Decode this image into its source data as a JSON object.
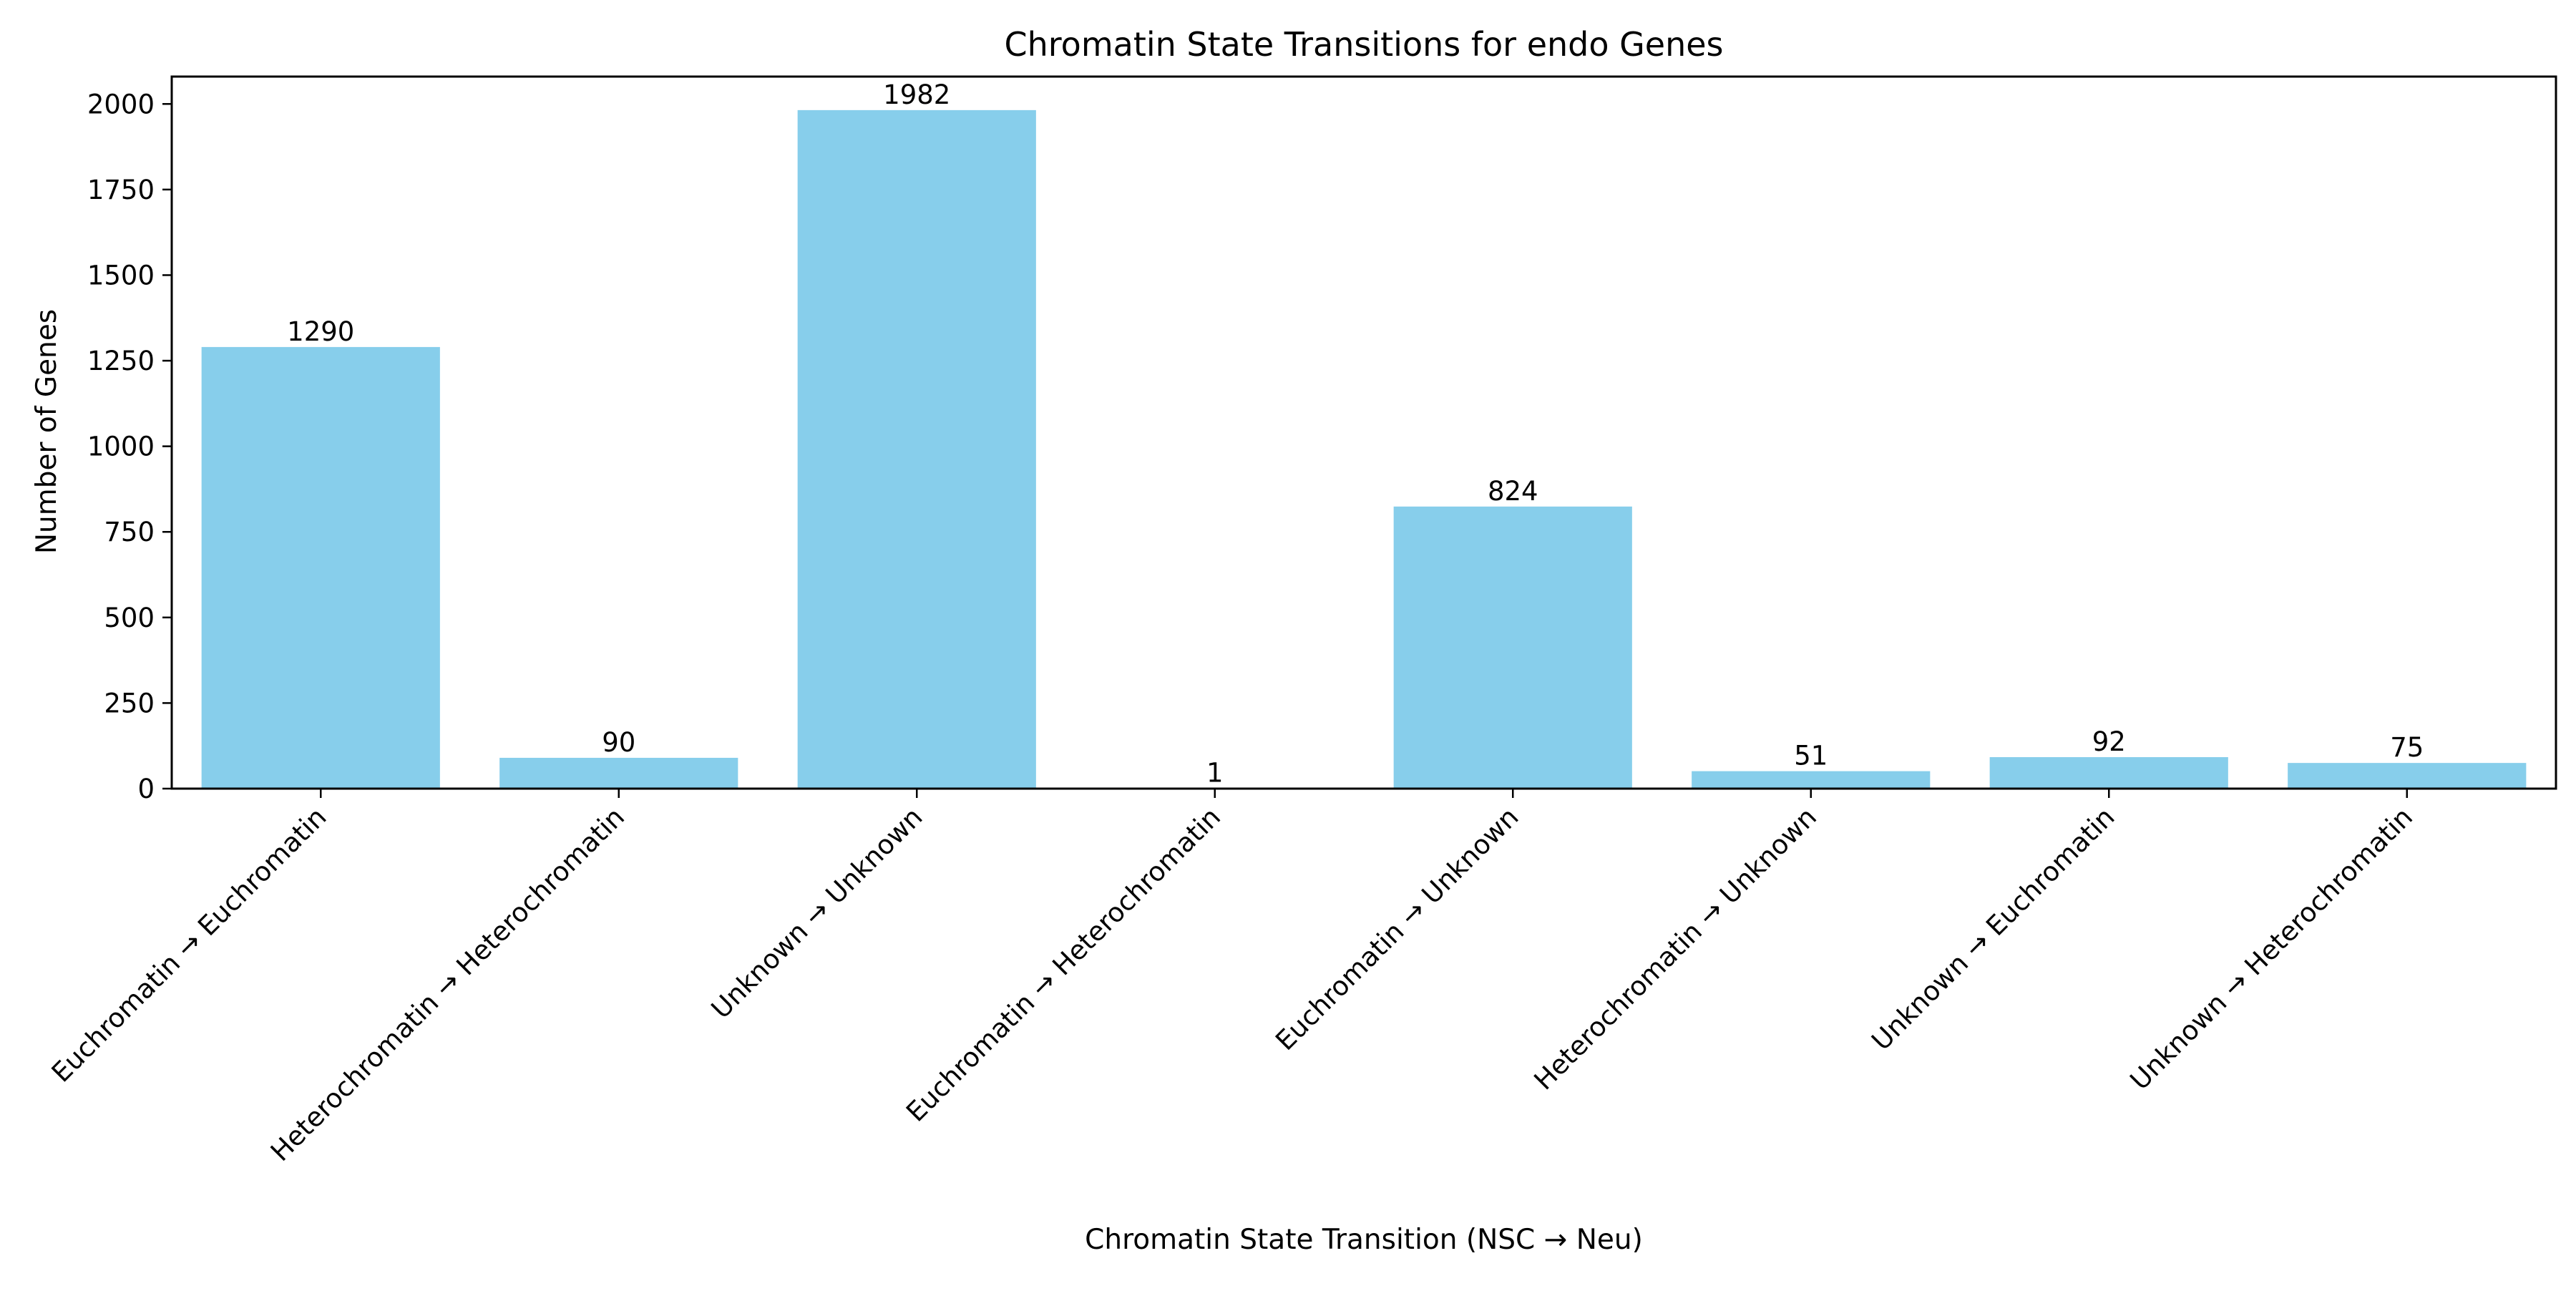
{
  "chart_data": {
    "type": "bar",
    "title": "Chromatin State Transitions for endo Genes",
    "xlabel": "Chromatin State Transition (NSC → Neu)",
    "ylabel": "Number of Genes",
    "categories": [
      "Euchromatin → Euchromatin",
      "Heterochromatin → Heterochromatin",
      "Unknown → Unknown",
      "Euchromatin → Heterochromatin",
      "Euchromatin → Unknown",
      "Heterochromatin → Unknown",
      "Unknown → Euchromatin",
      "Unknown → Heterochromatin"
    ],
    "values": [
      1290,
      90,
      1982,
      1,
      824,
      51,
      92,
      75
    ],
    "data_labels": [
      "1290",
      "90",
      "1982",
      "1",
      "824",
      "51",
      "92",
      "75"
    ],
    "ylim": [
      0,
      2080
    ],
    "yticks": [
      0,
      250,
      500,
      750,
      1000,
      1250,
      1500,
      1750,
      2000
    ],
    "ytick_labels": [
      "0",
      "250",
      "500",
      "750",
      "1000",
      "1250",
      "1500",
      "1750",
      "2000"
    ],
    "grid": false,
    "legend": "none",
    "bar_color": "#87ceeb"
  }
}
